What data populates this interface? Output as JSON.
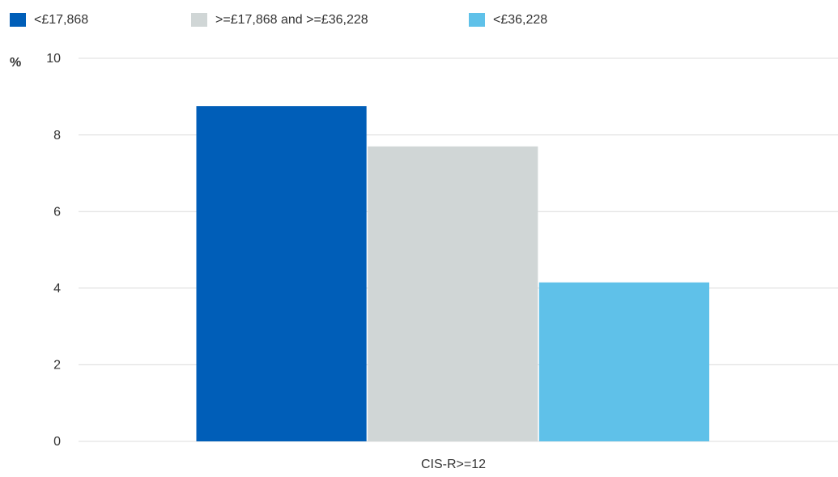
{
  "chart_data": {
    "type": "bar",
    "ylabel": "%",
    "ylim": [
      0,
      10
    ],
    "yticks": [
      0,
      2,
      4,
      6,
      8,
      10
    ],
    "grid": true,
    "legend_position": "top-left",
    "categories": [
      "CIS-R>=12"
    ],
    "series": [
      {
        "name": "<£17,868",
        "values": [
          8.75
        ],
        "color": "#005EB8"
      },
      {
        "name": ">=£17,868 and >=£36,228",
        "values": [
          7.7
        ],
        "color": "#D0D6D6"
      },
      {
        "name": "<£36,228",
        "values": [
          4.15
        ],
        "color": "#5FC1E9"
      }
    ]
  }
}
